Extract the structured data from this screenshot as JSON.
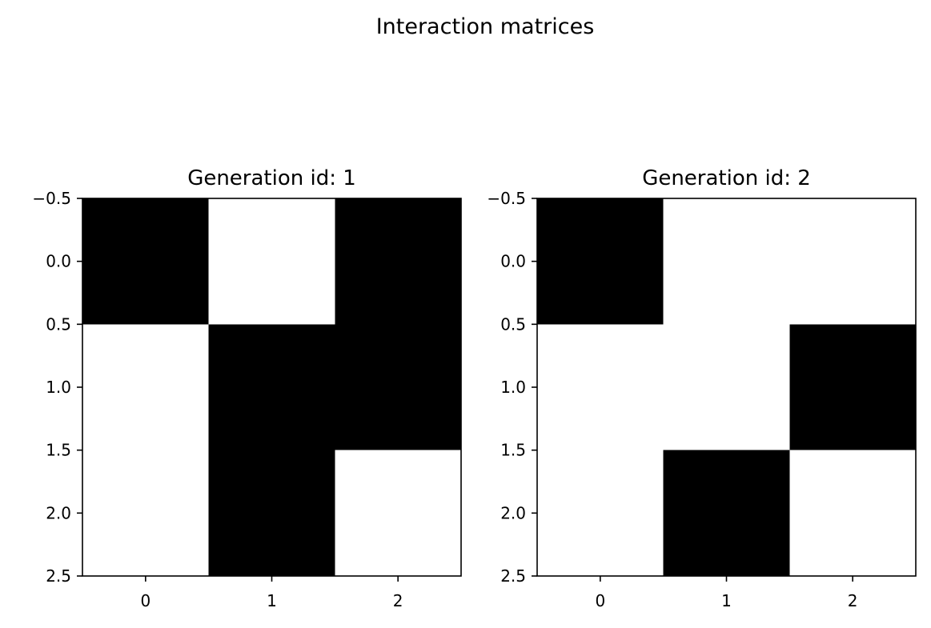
{
  "figure_title": "Interaction matrices",
  "chart_data": [
    {
      "type": "heatmap",
      "title": "Generation id: 1",
      "xlabel": "",
      "ylabel": "",
      "x_ticks": [
        "0",
        "1",
        "2"
      ],
      "y_ticks": [
        "−0.5",
        "0.0",
        "0.5",
        "1.0",
        "1.5",
        "2.0",
        "2.5"
      ],
      "xlim": [
        -0.5,
        2.5
      ],
      "ylim": [
        2.5,
        -0.5
      ],
      "grid": false,
      "colormap": {
        "0": "#ffffff",
        "1": "#000000"
      },
      "matrix": [
        [
          1,
          0,
          1
        ],
        [
          0,
          1,
          1
        ],
        [
          0,
          1,
          0
        ]
      ]
    },
    {
      "type": "heatmap",
      "title": "Generation id: 2",
      "xlabel": "",
      "ylabel": "",
      "x_ticks": [
        "0",
        "1",
        "2"
      ],
      "y_ticks": [
        "−0.5",
        "0.0",
        "0.5",
        "1.0",
        "1.5",
        "2.0",
        "2.5"
      ],
      "xlim": [
        -0.5,
        2.5
      ],
      "ylim": [
        2.5,
        -0.5
      ],
      "grid": false,
      "colormap": {
        "0": "#ffffff",
        "1": "#000000"
      },
      "matrix": [
        [
          1,
          0,
          0
        ],
        [
          0,
          0,
          1
        ],
        [
          0,
          1,
          0
        ]
      ]
    }
  ]
}
